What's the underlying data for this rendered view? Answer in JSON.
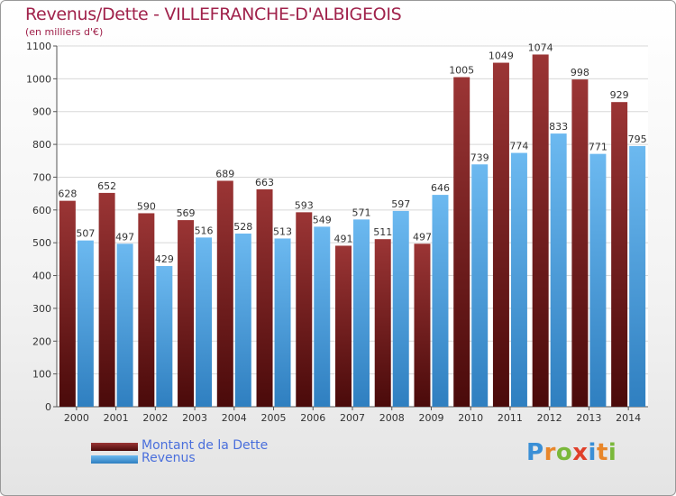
{
  "title": "Revenus/Dette - VILLEFRANCHE-D'ALBIGEOIS",
  "unit_note": "(en milliers d'€)",
  "colors": {
    "debt": "#7a1c1c",
    "debt_light": "#9b3535",
    "revenue": "#4aa3e6",
    "revenue_light": "#6cb9f0",
    "title": "#a0224b",
    "legend_text": "#4a6fdc"
  },
  "brand": {
    "letters": [
      "P",
      "r",
      "o",
      "x",
      "i",
      "t",
      "i"
    ],
    "colors": [
      "#3a8fd6",
      "#e8862a",
      "#7ab83a",
      "#e0402a",
      "#3a8fd6",
      "#e8862a",
      "#7ab83a"
    ]
  },
  "chart_data": {
    "type": "bar",
    "categories": [
      "2000",
      "2001",
      "2002",
      "2003",
      "2004",
      "2005",
      "2006",
      "2007",
      "2008",
      "2009",
      "2010",
      "2011",
      "2012",
      "2013",
      "2014"
    ],
    "series": [
      {
        "name": "Montant de la Dette",
        "values": [
          628,
          652,
          590,
          569,
          689,
          663,
          593,
          491,
          511,
          497,
          1005,
          1049,
          1074,
          998,
          929
        ]
      },
      {
        "name": "Revenus",
        "values": [
          507,
          497,
          429,
          516,
          528,
          513,
          549,
          571,
          597,
          646,
          739,
          774,
          833,
          771,
          795
        ]
      }
    ],
    "yticks": [
      "0",
      "100",
      "200",
      "300",
      "400",
      "500",
      "600",
      "700",
      "800",
      "900",
      "1000",
      "1100"
    ],
    "ylim": [
      0,
      1100
    ],
    "grid": true,
    "legend_position": "bottom-left"
  }
}
